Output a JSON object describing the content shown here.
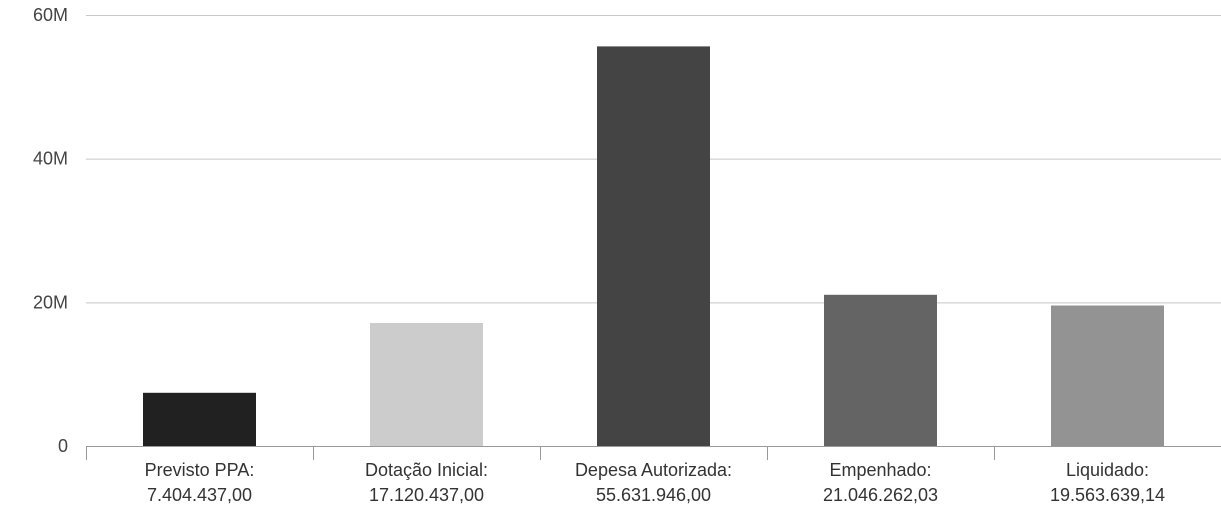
{
  "chart_data": {
    "type": "bar",
    "categories": [
      [
        "Previsto PPA:",
        "7.404.437,00"
      ],
      [
        "Dotação Inicial:",
        "17.120.437,00"
      ],
      [
        "Depesa Autorizada:",
        "55.631.946,00"
      ],
      [
        "Empenhado:",
        "21.046.262,03"
      ],
      [
        "Liquidado:",
        "19.563.639,14"
      ]
    ],
    "values": [
      7404437.0,
      17120437.0,
      55631946.0,
      21046262.03,
      19563639.14
    ],
    "bar_colors": [
      "#212121",
      "#cccccc",
      "#444444",
      "#646464",
      "#939393"
    ],
    "ylim": [
      0,
      60000000
    ],
    "y_ticks": [
      {
        "value": 0,
        "label": "0"
      },
      {
        "value": 20000000,
        "label": "20M"
      },
      {
        "value": 40000000,
        "label": "40M"
      },
      {
        "value": 60000000,
        "label": "60M"
      }
    ],
    "grid": true,
    "gridline_color": "#c8c8c8",
    "axis_color": "#999999",
    "title": "",
    "xlabel": "",
    "ylabel": ""
  }
}
